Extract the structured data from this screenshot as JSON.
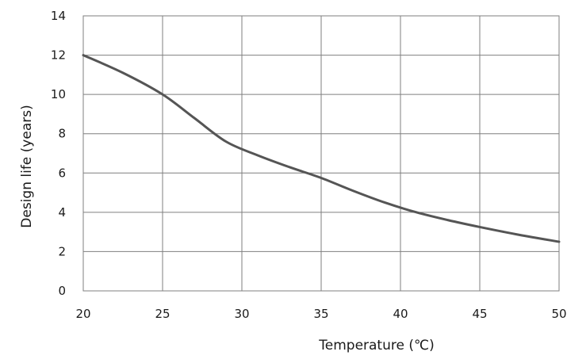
{
  "chart_data": {
    "type": "line",
    "xlabel": "Temperature (℃)",
    "ylabel": "Design life (years)",
    "xlim": [
      20,
      50
    ],
    "ylim": [
      0,
      14
    ],
    "x_ticks": [
      20,
      25,
      30,
      35,
      40,
      45,
      50
    ],
    "y_ticks": [
      0,
      2,
      4,
      6,
      8,
      10,
      12,
      14
    ],
    "grid": true,
    "line_color": "#555555",
    "grid_color": "#7f7f7f",
    "series": [
      {
        "x": [
          20,
          22.5,
          25,
          27,
          29,
          31,
          33,
          35,
          37,
          39,
          41,
          43,
          45,
          47.5,
          50
        ],
        "values": [
          12,
          11.1,
          10,
          8.8,
          7.6,
          6.9,
          6.3,
          5.75,
          5.1,
          4.5,
          4.0,
          3.6,
          3.25,
          2.85,
          2.5
        ]
      }
    ]
  }
}
